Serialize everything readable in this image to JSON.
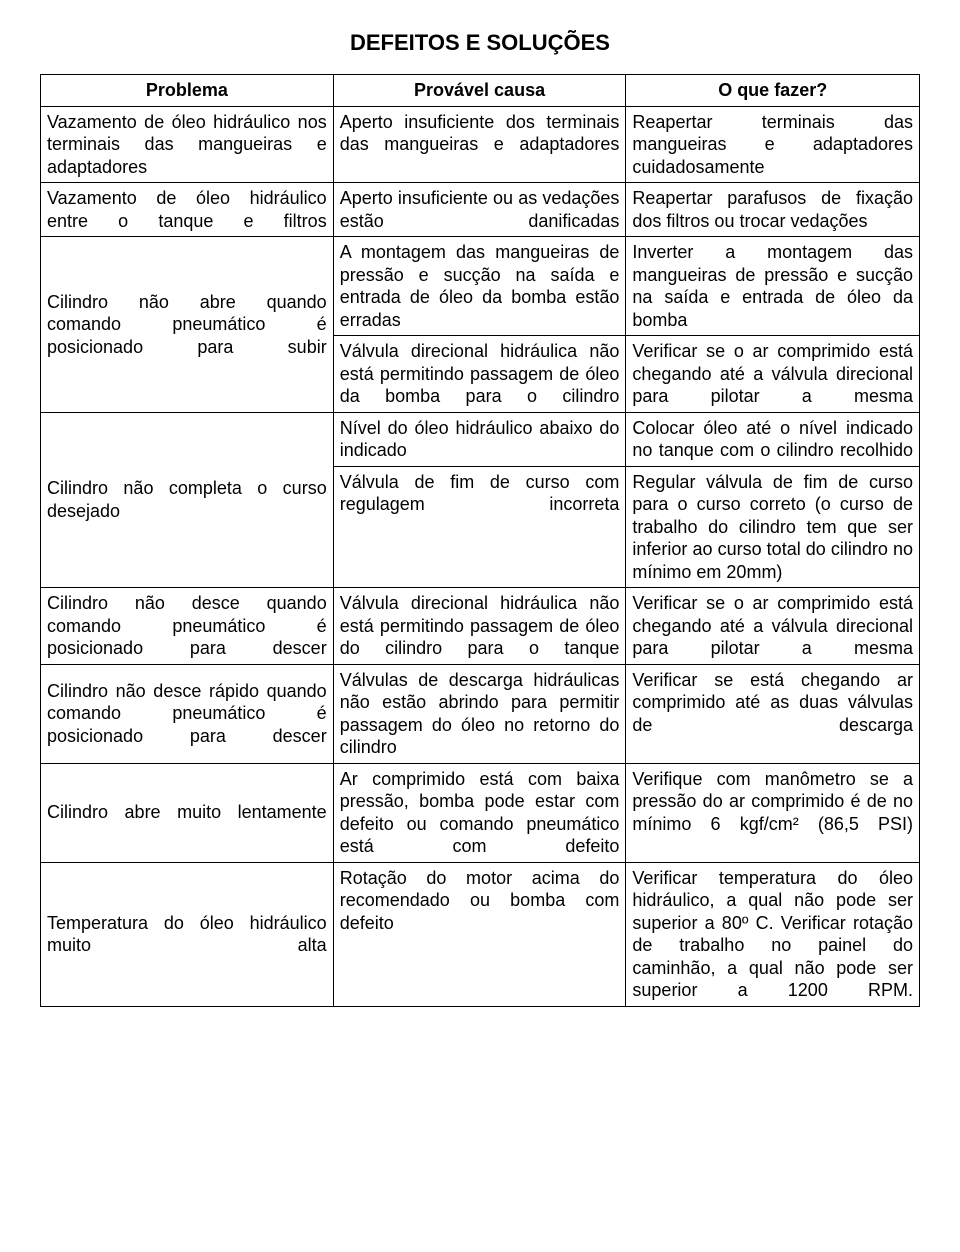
{
  "title": "DEFEITOS E SOLUÇÕES",
  "headers": {
    "problema": "Problema",
    "causa": "Provável causa",
    "fazer": "O que fazer?"
  },
  "rows": [
    {
      "problema": "Vazamento de óleo hidráulico nos terminais das mangueiras e adaptadores",
      "p_class": "justify",
      "causa": "Aperto insuficiente dos terminais das mangueiras e adaptadores",
      "c_class": "justify",
      "fazer": "Reapertar terminais das mangueiras e adaptadores cuidadosamente",
      "f_class": "justify",
      "p_rowspan": 1
    },
    {
      "problema": "Vazamento de óleo hidráulico entre o tanque e filtros",
      "p_class": "justify",
      "causa": "Aperto insuficiente ou as vedações estão danificadas",
      "c_class": "justify",
      "fazer": "Reapertar parafusos de fixação dos filtros ou trocar vedações",
      "f_class": "justify-normal",
      "p_rowspan": 1
    },
    {
      "problema": "Cilindro não abre quando comando pneumático é posicionado para subir",
      "p_class": "justify",
      "causa": "A montagem das mangueiras de pressão e sucção na saída e entrada de óleo da bomba estão erradas",
      "c_class": "justify-normal",
      "fazer": "Inverter a montagem das mangueiras de pressão e sucção na saída e entrada de óleo da bomba",
      "f_class": "justify",
      "p_rowspan": 2
    },
    {
      "causa": "Válvula direcional hidráulica não está permitindo passagem de óleo da bomba para o cilindro",
      "c_class": "justify",
      "fazer": "Verificar se o ar comprimido está chegando até a válvula direcional para pilotar a mesma",
      "f_class": "justify"
    },
    {
      "problema": "Cilindro não completa o curso desejado",
      "p_class": "justify",
      "causa": "Nível do óleo hidráulico abaixo do indicado",
      "c_class": "justify-normal",
      "fazer": "Colocar óleo até o nível indicado no tanque com o cilindro recolhido",
      "f_class": "justify",
      "p_rowspan": 2
    },
    {
      "causa": "Válvula de fim de curso com regulagem incorreta",
      "c_class": "justify",
      "fazer": "Regular válvula de fim de curso para o curso correto (o curso de trabalho do cilindro tem que ser inferior ao curso total do cilindro no mínimo em 20mm)",
      "f_class": "justify-normal"
    },
    {
      "problema": "Cilindro não desce quando comando pneumático é posicionado para descer",
      "p_class": "justify",
      "causa": "Válvula direcional hidráulica não está permitindo passagem de óleo do cilindro para o tanque",
      "c_class": "justify",
      "fazer": "Verificar se o ar comprimido está chegando até a válvula direcional para pilotar a mesma",
      "f_class": "justify",
      "p_rowspan": 1
    },
    {
      "problema": "Cilindro não desce rápido quando comando pneumático é posicionado para descer",
      "p_class": "justify",
      "causa": "Válvulas de descarga hidráulicas não estão abrindo para permitir passagem do óleo no retorno do cilindro",
      "c_class": "justify",
      "fazer": "Verificar se está chegando ar comprimido até as duas válvulas de descarga",
      "f_class": "justify",
      "p_rowspan": 1
    },
    {
      "problema": "Cilindro abre muito lentamente",
      "p_class": "justify",
      "causa": "Ar comprimido está com baixa pressão, bomba pode estar com defeito ou comando pneumático está com defeito",
      "c_class": "justify",
      "fazer": "Verifique com manômetro se a pressão do ar comprimido é de no mínimo 6 kgf/cm² (86,5 PSI)",
      "f_class": "justify",
      "p_rowspan": 1
    },
    {
      "problema": "Temperatura do óleo hidráulico muito alta",
      "p_class": "justify",
      "causa": "Rotação do motor acima do recomendado ou bomba com defeito",
      "c_class": "justify",
      "fazer": "Verificar temperatura do óleo hidráulico, a qual não pode ser superior a 80º C. Verificar rotação de trabalho no painel do caminhão, a qual não pode ser superior a 1200 RPM.",
      "f_class": "justify",
      "p_rowspan": 1
    }
  ],
  "style": {
    "font_family": "Arial",
    "title_fontsize": 22,
    "cell_fontsize": 18,
    "border_color": "#000000",
    "background_color": "#ffffff",
    "text_color": "#000000"
  }
}
